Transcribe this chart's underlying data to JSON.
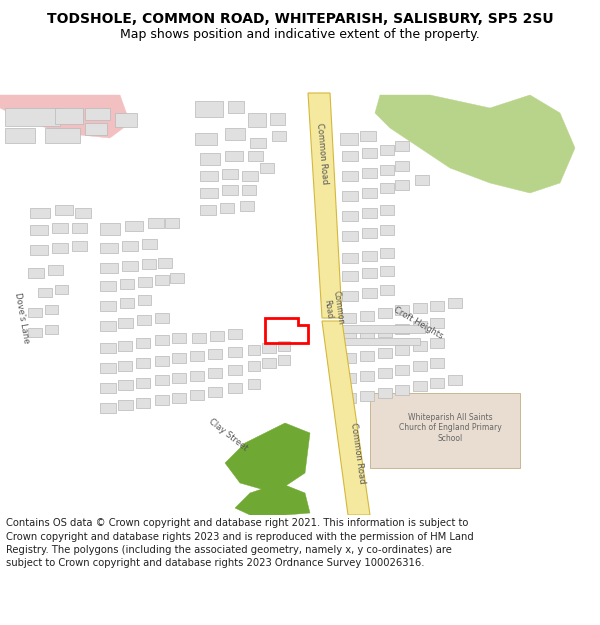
{
  "title": "TODSHOLE, COMMON ROAD, WHITEPARISH, SALISBURY, SP5 2SU",
  "subtitle": "Map shows position and indicative extent of the property.",
  "footer": "Contains OS data © Crown copyright and database right 2021. This information is subject to Crown copyright and database rights 2023 and is reproduced with the permission of HM Land Registry. The polygons (including the associated geometry, namely x, y co-ordinates) are subject to Crown copyright and database rights 2023 Ordnance Survey 100026316.",
  "bg_color": "#ffffff",
  "map_bg": "#f0efeb",
  "road_fill": "#f5e9a0",
  "road_edge": "#d4b83a",
  "building_fill": "#e0e0e0",
  "building_edge": "#b8b8b8",
  "green_dark": "#6fa832",
  "green_light": "#b8d48a",
  "pink_fill": "#f2c0c0",
  "school_fill": "#e8ddd0",
  "red_plot": "#ff0000",
  "title_fontsize": 10,
  "subtitle_fontsize": 9,
  "footer_fontsize": 7.2,
  "label_fontsize": 6.0
}
